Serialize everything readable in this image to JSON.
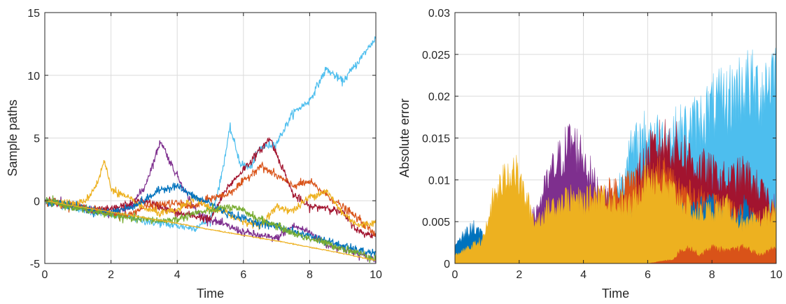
{
  "chart_data": [
    {
      "type": "line",
      "xlabel": "Time",
      "ylabel": "Sample paths",
      "xlim": [
        0,
        10
      ],
      "ylim": [
        -5,
        15
      ],
      "xticks": [
        "0",
        "2",
        "4",
        "6",
        "8",
        "10"
      ],
      "yticks": [
        "-5",
        "0",
        "5",
        "10",
        "15"
      ],
      "grid": true,
      "legend": "none",
      "series_colors": [
        "#0072BD",
        "#D95319",
        "#EDB120",
        "#7E2F8E",
        "#77AC30",
        "#4DBEEE",
        "#A2142F"
      ],
      "series": [
        {
          "color": "#4DBEEE",
          "x": [
            0,
            0.5,
            1,
            1.5,
            2,
            2.5,
            3,
            3.5,
            4,
            4.5,
            5,
            5.3,
            5.6,
            5.9,
            6.2,
            6.5,
            7,
            7.5,
            8,
            8.5,
            9,
            9.5,
            10
          ],
          "y": [
            0,
            -0.3,
            -0.6,
            -0.9,
            -1.1,
            -1.3,
            -1.6,
            -1.8,
            -2.0,
            -2.2,
            -1.5,
            1.5,
            5.8,
            3.0,
            2.6,
            4.2,
            4.6,
            7.0,
            8.0,
            10.5,
            9.5,
            11.2,
            13.0
          ]
        },
        {
          "color": "#7E2F8E",
          "x": [
            0,
            0.5,
            1,
            1.5,
            2,
            2.5,
            3,
            3.3,
            3.5,
            3.8,
            4.2,
            4.6,
            5,
            5.5,
            6,
            6.5,
            7,
            7.5,
            8,
            8.5,
            9,
            9.5,
            10
          ],
          "y": [
            0,
            -0.2,
            -0.4,
            -0.8,
            -1.0,
            -0.7,
            1.0,
            3.2,
            4.8,
            3.0,
            1.0,
            -1.0,
            -1.5,
            -2.0,
            -2.5,
            -2.8,
            -3.0,
            -2.0,
            -2.5,
            -3.5,
            -3.8,
            -4.3,
            -4.7
          ]
        },
        {
          "color": "#A2142F",
          "x": [
            0,
            0.5,
            1,
            1.5,
            2,
            2.5,
            3,
            3.5,
            4,
            4.5,
            5,
            5.5,
            6,
            6.5,
            6.8,
            7.2,
            7.5,
            8,
            8.5,
            9,
            9.5,
            10
          ],
          "y": [
            0,
            -0.2,
            -0.5,
            -0.8,
            -0.7,
            -0.3,
            0.0,
            -0.5,
            -1.0,
            -1.2,
            -1.5,
            1.0,
            2.5,
            4.0,
            5.0,
            2.5,
            0.5,
            -0.5,
            -0.5,
            -1.0,
            -2.5,
            -2.8
          ]
        },
        {
          "color": "#D95319",
          "x": [
            0,
            0.5,
            1,
            1.5,
            2,
            2.5,
            3,
            3.5,
            4,
            4.5,
            5,
            5.5,
            6,
            6.5,
            7,
            7.5,
            8,
            8.5,
            9,
            9.5,
            10
          ],
          "y": [
            0,
            -0.2,
            -0.5,
            -0.7,
            -1.0,
            -1.2,
            -0.5,
            -0.3,
            -0.2,
            -0.5,
            0.2,
            0.5,
            1.5,
            2.8,
            2.0,
            1.2,
            1.5,
            0.5,
            -0.5,
            -1.5,
            -2.8
          ]
        },
        {
          "color": "#EDB120",
          "x": [
            0,
            0.5,
            1,
            1.3,
            1.6,
            1.8,
            2,
            2.5,
            3,
            3.5,
            4,
            4.5,
            5,
            5.5,
            6,
            6.5,
            7,
            7.5,
            8,
            8.5,
            9,
            9.5,
            10
          ],
          "y": [
            0,
            -0.1,
            -0.3,
            0.2,
            1.5,
            3.2,
            1.0,
            0.2,
            -0.6,
            -1.0,
            -0.8,
            0.2,
            -0.6,
            -1.0,
            -1.6,
            -2.0,
            -0.5,
            -0.8,
            0.3,
            0.8,
            -1.0,
            -2.0,
            -1.7
          ]
        },
        {
          "color": "#0072BD",
          "x": [
            0,
            0.5,
            1,
            1.5,
            2,
            2.5,
            3,
            3.5,
            4,
            4.5,
            5,
            5.5,
            6,
            6.5,
            7,
            7.5,
            8,
            8.5,
            9,
            9.5,
            10
          ],
          "y": [
            0,
            -0.2,
            -0.5,
            -0.8,
            -0.9,
            -0.6,
            0.0,
            0.9,
            1.2,
            0.3,
            -0.2,
            -1.0,
            -1.4,
            -1.8,
            -2.0,
            -2.5,
            -2.8,
            -3.2,
            -3.6,
            -4.0,
            -4.2
          ]
        },
        {
          "color": "#77AC30",
          "x": [
            0,
            0.5,
            1,
            1.5,
            2,
            2.5,
            3,
            3.5,
            4,
            4.5,
            5,
            5.5,
            6,
            6.5,
            7,
            7.5,
            8,
            8.5,
            9,
            9.5,
            10
          ],
          "y": [
            0,
            -0.3,
            -0.6,
            -0.9,
            -1.1,
            -1.4,
            -1.5,
            -1.6,
            -1.5,
            -1.0,
            -0.8,
            -0.5,
            -0.8,
            -1.5,
            -2.0,
            -2.6,
            -3.0,
            -3.4,
            -3.8,
            -4.2,
            -4.6
          ]
        },
        {
          "color": "#EDB120",
          "x": [
            0,
            1,
            2,
            3,
            4,
            5,
            6,
            7,
            8,
            9,
            10
          ],
          "y": [
            0,
            -0.45,
            -0.9,
            -1.35,
            -1.8,
            -2.3,
            -2.75,
            -3.2,
            -3.7,
            -4.2,
            -4.75
          ]
        }
      ]
    },
    {
      "type": "area",
      "xlabel": "Time",
      "ylabel": "Absolute error",
      "xlim": [
        0,
        10
      ],
      "ylim": [
        0,
        0.03
      ],
      "xticks": [
        "0",
        "2",
        "4",
        "6",
        "8",
        "10"
      ],
      "yticks": [
        "0",
        "0.005",
        "0.01",
        "0.015",
        "0.02",
        "0.025",
        "0.03"
      ],
      "grid": true,
      "legend": "none",
      "series": [
        {
          "color": "#4DBEEE",
          "x": [
            0,
            1,
            2,
            3,
            4,
            5,
            5.4,
            6,
            6.5,
            7,
            7.5,
            8,
            8.5,
            9,
            9.5,
            10
          ],
          "y": [
            0.001,
            0.002,
            0.003,
            0.004,
            0.006,
            0.008,
            0.013,
            0.016,
            0.015,
            0.016,
            0.017,
            0.019,
            0.02,
            0.022,
            0.021,
            0.024
          ]
        },
        {
          "color": "#7E2F8E",
          "x": [
            0,
            1,
            2,
            2.5,
            3,
            3.3,
            3.6,
            4,
            4.3,
            4.6,
            5,
            5.5,
            6,
            7,
            8,
            9,
            10
          ],
          "y": [
            0.0015,
            0.002,
            0.003,
            0.006,
            0.011,
            0.013,
            0.015,
            0.013,
            0.01,
            0.008,
            0.007,
            0.008,
            0.009,
            0.01,
            0.009,
            0.008,
            0.007
          ]
        },
        {
          "color": "#A2142F",
          "x": [
            0,
            1,
            2,
            3,
            4,
            5,
            5.5,
            6,
            6.5,
            7,
            7.5,
            8,
            8.5,
            9,
            9.5,
            10
          ],
          "y": [
            0.001,
            0.002,
            0.003,
            0.004,
            0.005,
            0.007,
            0.009,
            0.013,
            0.015,
            0.014,
            0.012,
            0.011,
            0.01,
            0.011,
            0.009,
            0.006
          ]
        },
        {
          "color": "#D95319",
          "x": [
            0,
            1,
            2,
            3,
            4,
            4.5,
            5,
            5.5,
            6,
            6.5,
            7,
            7.5,
            8,
            8.5,
            9,
            9.5,
            10
          ],
          "y": [
            0.001,
            0.002,
            0.003,
            0.0045,
            0.006,
            0.008,
            0.009,
            0.01,
            0.01,
            0.011,
            0.009,
            0.008,
            0.0075,
            0.0065,
            0.006,
            0.0055,
            0.005
          ]
        },
        {
          "color": "#0072BD",
          "x": [
            0,
            0.3,
            0.6,
            0.9,
            1.2,
            2,
            3,
            4,
            5,
            6,
            7,
            7.5,
            8,
            8.5,
            9,
            9.5,
            10
          ],
          "y": [
            0.002,
            0.0035,
            0.0045,
            0.003,
            0.002,
            0.003,
            0.004,
            0.0045,
            0.005,
            0.006,
            0.006,
            0.0065,
            0.0075,
            0.005,
            0.007,
            0.004,
            0.003
          ]
        },
        {
          "color": "#EDB120",
          "x": [
            0,
            0.5,
            0.9,
            1.2,
            1.5,
            1.8,
            2.1,
            2.5,
            3,
            3.5,
            4,
            4.5,
            5,
            5.5,
            6,
            6.5,
            7,
            7.5,
            8,
            8.5,
            9,
            9.5,
            10
          ],
          "y": [
            0.001,
            0.002,
            0.003,
            0.008,
            0.01,
            0.012,
            0.009,
            0.005,
            0.007,
            0.008,
            0.0075,
            0.0085,
            0.0075,
            0.007,
            0.011,
            0.0095,
            0.008,
            0.006,
            0.0065,
            0.007,
            0.0045,
            0.0055,
            0.0065
          ]
        },
        {
          "color": "#D95319",
          "x": [
            0,
            1,
            2,
            3,
            4,
            5,
            6,
            6.8,
            7,
            7.3,
            7.6,
            8,
            8.5,
            9,
            9.5,
            10
          ],
          "y": [
            0,
            0,
            0,
            0,
            0,
            0,
            0,
            0.0005,
            0.0015,
            0.002,
            0.001,
            0.002,
            0.0015,
            0.002,
            0.001,
            0.002
          ]
        }
      ]
    }
  ]
}
